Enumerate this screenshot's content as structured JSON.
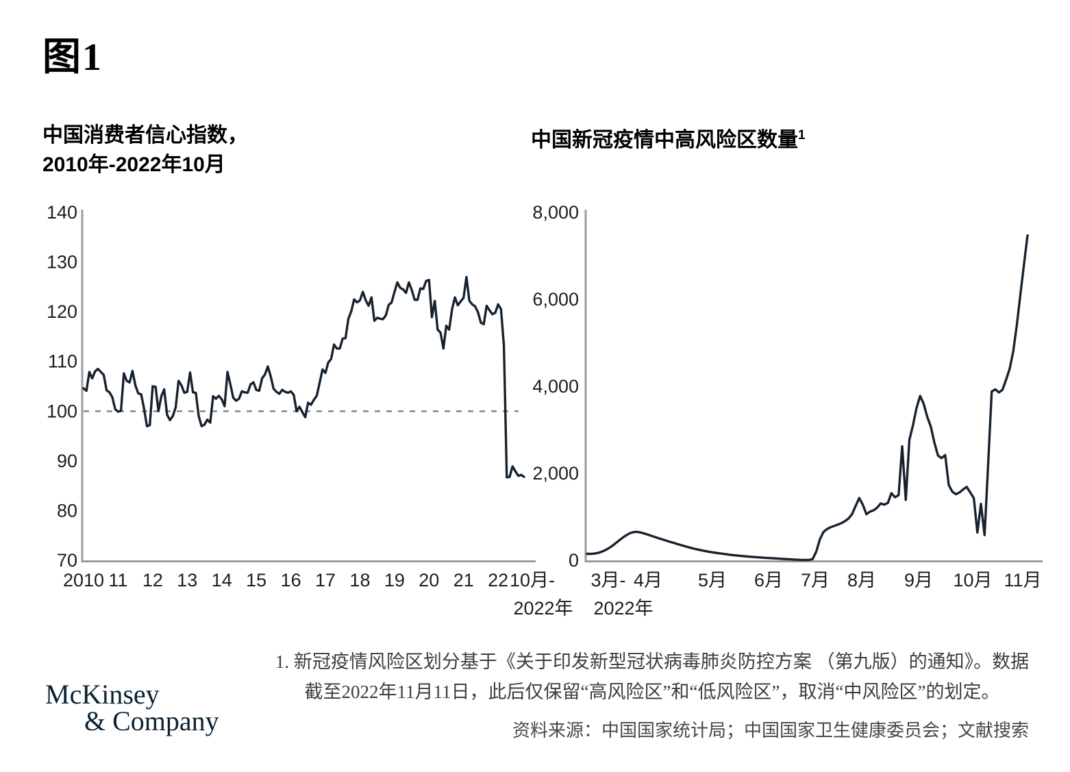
{
  "page": {
    "figure_label": "图1",
    "footnote_line1": "1. 新冠疫情风险区划分基于《关于印发新型冠状病毒肺炎防控方案 （第九版）的通知》。数据",
    "footnote_line2": "截至2022年11月11日，此后仅保留“高风险区”和“低风险区”，取消“中风险区”的划定。",
    "source": "资料来源：中国国家统计局；中国国家卫生健康委员会；文献搜索",
    "logo_line1": "McKinsey",
    "logo_line2": "& Company"
  },
  "colors": {
    "line": "#16222e",
    "axis": "#9b9b9b",
    "dashed": "#8a8a8a",
    "tick_text": "#1d1d1d",
    "logo": "#0b2332"
  },
  "chart_data": [
    {
      "type": "line",
      "title_line1": "中国消费者信心指数，",
      "title_line2": "2010年-2022年10月",
      "x_start": "2010-01",
      "x_end": "2022-10",
      "x_unit": "month",
      "x_tick_labels": [
        "2010",
        "11",
        "12",
        "13",
        "14",
        "15",
        "16",
        "17",
        "18",
        "19",
        "20",
        "21",
        "22"
      ],
      "x_end_label_line1": "10月-",
      "x_end_label_line2": "2022年",
      "y_ticks": [
        140,
        130,
        120,
        110,
        100,
        90,
        80,
        70
      ],
      "ylim": [
        70,
        140
      ],
      "reference_line": 100,
      "grid": false,
      "legend": "none",
      "values": [
        104.6,
        104.1,
        107.9,
        106.6,
        108.0,
        108.5,
        107.9,
        107.3,
        104.2,
        103.8,
        102.8,
        100.4,
        99.9,
        100.1,
        107.6,
        106.1,
        105.8,
        108.1,
        105.2,
        103.6,
        103.4,
        100.5,
        97.0,
        97.2,
        105.0,
        104.9,
        100.0,
        103.0,
        104.4,
        99.3,
        98.2,
        99.0,
        100.8,
        106.1,
        105.2,
        103.7,
        103.9,
        107.8,
        103.8,
        103.7,
        99.0,
        97.0,
        97.3,
        98.3,
        97.7,
        103.0,
        102.5,
        103.1,
        102.4,
        101.0,
        107.9,
        105.4,
        102.7,
        102.1,
        102.5,
        104.0,
        103.8,
        103.7,
        105.4,
        105.8,
        104.3,
        104.1,
        106.6,
        107.4,
        109.0,
        107.0,
        104.5,
        103.9,
        103.5,
        104.3,
        103.9,
        103.7,
        104.0,
        103.3,
        100.0,
        100.9,
        99.8,
        98.8,
        101.7,
        101.3,
        102.3,
        103.1,
        105.7,
        108.4,
        107.7,
        109.8,
        110.5,
        113.4,
        112.6,
        112.6,
        114.6,
        114.7,
        118.6,
        120.1,
        122.5,
        121.9,
        122.3,
        124.0,
        122.3,
        121.2,
        122.9,
        118.2,
        118.8,
        118.6,
        118.5,
        119.3,
        121.4,
        121.9,
        124.0,
        125.9,
        124.8,
        124.5,
        123.8,
        125.9,
        124.4,
        122.4,
        122.4,
        124.7,
        124.6,
        126.2,
        126.4,
        118.9,
        122.2,
        116.4,
        115.8,
        112.6,
        117.2,
        116.4,
        120.5,
        122.9,
        121.3,
        122.1,
        122.8,
        127.0,
        122.2,
        121.5,
        121.1,
        119.9,
        117.8,
        117.5,
        121.2,
        120.3,
        119.5,
        119.8,
        121.5,
        120.5,
        113.2,
        86.7,
        86.8,
        88.9,
        87.9,
        87.0,
        87.2,
        86.8
      ]
    },
    {
      "type": "line",
      "title": "中国新冠疫情中高风险区数量",
      "title_superscript": "1",
      "x_start": "2022-03",
      "x_end": "2022-11-11",
      "x_unit": "day",
      "x_tick_labels": [
        "3月-",
        "4月",
        "5月",
        "6月",
        "7月",
        "8月",
        "9月",
        "10月",
        "11月"
      ],
      "x_first_tick_sub_label": "2022年",
      "y_tick_labels": [
        "8,000",
        "6,000",
        "4,000",
        "2,000",
        "0"
      ],
      "ylim": [
        0,
        8000
      ],
      "grid": false,
      "legend": "none",
      "values": [
        150,
        148,
        155,
        170,
        195,
        230,
        275,
        330,
        395,
        460,
        525,
        580,
        625,
        650,
        655,
        640,
        615,
        590,
        562,
        535,
        508,
        482,
        456,
        430,
        405,
        380,
        356,
        332,
        309,
        287,
        266,
        247,
        230,
        214,
        199,
        185,
        172,
        160,
        149,
        138,
        128,
        118,
        109,
        100,
        93,
        86,
        80,
        74,
        68,
        62,
        57,
        52,
        47,
        42,
        37,
        32,
        27,
        22,
        16,
        12,
        10,
        9,
        10,
        30,
        200,
        480,
        650,
        720,
        760,
        790,
        820,
        855,
        900,
        960,
        1060,
        1250,
        1433,
        1280,
        1060,
        1120,
        1150,
        1210,
        1307,
        1280,
        1320,
        1543,
        1450,
        1500,
        2620,
        1390,
        2770,
        3100,
        3500,
        3780,
        3600,
        3300,
        3070,
        2700,
        2410,
        2350,
        2420,
        1730,
        1580,
        1520,
        1560,
        1630,
        1690,
        1560,
        1430,
        640,
        1300,
        580,
        2200,
        3880,
        3930,
        3860,
        3920,
        4150,
        4400,
        4800,
        5400,
        6100,
        6800,
        7470
      ]
    }
  ]
}
